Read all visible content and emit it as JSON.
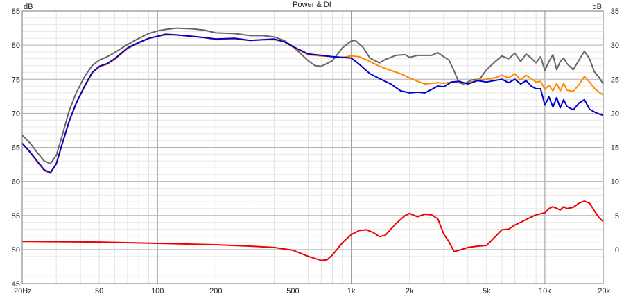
{
  "chart_data": {
    "type": "line",
    "title": "Power & DI",
    "ylabel_left": "dB",
    "ylabel_right": "dB",
    "xscale": "log",
    "xlim": [
      20,
      20000
    ],
    "ylim_left": [
      45,
      85
    ],
    "ylim_right": [
      -5,
      35
    ],
    "grid": true,
    "x_ticks": [
      {
        "v": 20,
        "label": "20Hz"
      },
      {
        "v": 50,
        "label": "50"
      },
      {
        "v": 100,
        "label": "100"
      },
      {
        "v": 200,
        "label": "200"
      },
      {
        "v": 500,
        "label": "500"
      },
      {
        "v": 1000,
        "label": "1k"
      },
      {
        "v": 2000,
        "label": "2k"
      },
      {
        "v": 5000,
        "label": "5k"
      },
      {
        "v": 10000,
        "label": "10k"
      },
      {
        "v": 20000,
        "label": "20k"
      }
    ],
    "y_ticks_left": [
      "45",
      "50",
      "55",
      "60",
      "65",
      "70",
      "75",
      "80",
      "85"
    ],
    "y_ticks_right": [
      "",
      "0",
      "5",
      "10",
      "15",
      "20",
      "25",
      "30",
      "35"
    ],
    "series": [
      {
        "color": "#666666",
        "axis": "left",
        "points": [
          [
            20,
            66.8
          ],
          [
            22,
            65.6
          ],
          [
            24,
            64.2
          ],
          [
            26,
            63
          ],
          [
            28,
            62.6
          ],
          [
            30,
            63.8
          ],
          [
            32,
            66.5
          ],
          [
            35,
            70.4
          ],
          [
            38,
            73
          ],
          [
            42,
            75.4
          ],
          [
            46,
            77
          ],
          [
            50,
            77.8
          ],
          [
            55,
            78.3
          ],
          [
            60,
            78.9
          ],
          [
            70,
            80.1
          ],
          [
            80,
            81
          ],
          [
            90,
            81.7
          ],
          [
            100,
            82.1
          ],
          [
            110,
            82.3
          ],
          [
            125,
            82.5
          ],
          [
            150,
            82.4
          ],
          [
            175,
            82.2
          ],
          [
            200,
            81.8
          ],
          [
            250,
            81.7
          ],
          [
            300,
            81.4
          ],
          [
            350,
            81.4
          ],
          [
            400,
            81.2
          ],
          [
            450,
            80.7
          ],
          [
            500,
            79.8
          ],
          [
            550,
            78.7
          ],
          [
            600,
            77.7
          ],
          [
            650,
            77
          ],
          [
            700,
            76.9
          ],
          [
            800,
            77.7
          ],
          [
            900,
            79.6
          ],
          [
            1000,
            80.6
          ],
          [
            1050,
            80.7
          ],
          [
            1150,
            79.7
          ],
          [
            1250,
            78.1
          ],
          [
            1400,
            77.4
          ],
          [
            1500,
            77.9
          ],
          [
            1700,
            78.5
          ],
          [
            1900,
            78.6
          ],
          [
            2000,
            78.2
          ],
          [
            2200,
            78.5
          ],
          [
            2400,
            78.5
          ],
          [
            2600,
            78.5
          ],
          [
            2800,
            78.9
          ],
          [
            3000,
            78.3
          ],
          [
            3200,
            77.8
          ],
          [
            3400,
            76.2
          ],
          [
            3600,
            74.5
          ],
          [
            3800,
            74.3
          ],
          [
            4200,
            74.9
          ],
          [
            4600,
            75
          ],
          [
            5000,
            76.4
          ],
          [
            5500,
            77.5
          ],
          [
            6000,
            78.4
          ],
          [
            6500,
            78
          ],
          [
            7000,
            78.8
          ],
          [
            7500,
            77.6
          ],
          [
            8000,
            78.7
          ],
          [
            8500,
            78.1
          ],
          [
            9000,
            77.4
          ],
          [
            9500,
            78.3
          ],
          [
            10000,
            76.3
          ],
          [
            10500,
            77.6
          ],
          [
            11000,
            78.6
          ],
          [
            11500,
            76.4
          ],
          [
            12000,
            77.6
          ],
          [
            12500,
            78.1
          ],
          [
            13000,
            77.3
          ],
          [
            14000,
            76.4
          ],
          [
            15000,
            77.8
          ],
          [
            16000,
            79.1
          ],
          [
            17000,
            78
          ],
          [
            18000,
            76.1
          ],
          [
            19000,
            75.3
          ],
          [
            20000,
            74.3
          ]
        ]
      },
      {
        "color": "#ff8800",
        "axis": "left",
        "points": [
          [
            20,
            65.6
          ],
          [
            22,
            64.2
          ],
          [
            24,
            62.8
          ],
          [
            26,
            61.6
          ],
          [
            28,
            61.2
          ],
          [
            30,
            62.5
          ],
          [
            32,
            65.2
          ],
          [
            35,
            68.8
          ],
          [
            38,
            71.4
          ],
          [
            42,
            73.9
          ],
          [
            46,
            75.9
          ],
          [
            50,
            76.8
          ],
          [
            55,
            77.2
          ],
          [
            60,
            77.9
          ],
          [
            70,
            79.5
          ],
          [
            80,
            80.3
          ],
          [
            90,
            81
          ],
          [
            100,
            81.3
          ],
          [
            110,
            81.5
          ],
          [
            125,
            81.5
          ],
          [
            150,
            81.3
          ],
          [
            175,
            81.1
          ],
          [
            200,
            80.8
          ],
          [
            250,
            80.9
          ],
          [
            300,
            80.7
          ],
          [
            350,
            80.8
          ],
          [
            400,
            80.8
          ],
          [
            450,
            80.5
          ],
          [
            500,
            79.7
          ],
          [
            600,
            78.6
          ],
          [
            700,
            78.4
          ],
          [
            800,
            78.3
          ],
          [
            900,
            78.2
          ],
          [
            1000,
            78.4
          ],
          [
            1100,
            78.3
          ],
          [
            1250,
            77.6
          ],
          [
            1400,
            76.9
          ],
          [
            1600,
            76.3
          ],
          [
            1800,
            75.8
          ],
          [
            2000,
            75.2
          ],
          [
            2200,
            74.7
          ],
          [
            2400,
            74.3
          ],
          [
            2600,
            74.4
          ],
          [
            2800,
            74.5
          ],
          [
            3000,
            74.4
          ],
          [
            3300,
            74.6
          ],
          [
            3600,
            74.6
          ],
          [
            4000,
            74.4
          ],
          [
            4500,
            74.9
          ],
          [
            5000,
            75
          ],
          [
            5500,
            75.2
          ],
          [
            6000,
            75.6
          ],
          [
            6500,
            75.2
          ],
          [
            7000,
            75.8
          ],
          [
            7500,
            74.9
          ],
          [
            8000,
            75.6
          ],
          [
            8500,
            75.1
          ],
          [
            9000,
            74.6
          ],
          [
            9500,
            74.7
          ],
          [
            10000,
            73.5
          ],
          [
            10500,
            74.1
          ],
          [
            11000,
            73.3
          ],
          [
            11500,
            74.4
          ],
          [
            12000,
            73.3
          ],
          [
            12500,
            74.4
          ],
          [
            13000,
            73.4
          ],
          [
            14000,
            73.2
          ],
          [
            15000,
            74.2
          ],
          [
            16000,
            75.4
          ],
          [
            17000,
            74.6
          ],
          [
            18000,
            73.7
          ],
          [
            19000,
            73.1
          ],
          [
            20000,
            72.7
          ]
        ]
      },
      {
        "color": "#0000cc",
        "axis": "left",
        "points": [
          [
            20,
            65.6
          ],
          [
            22,
            64.3
          ],
          [
            24,
            62.9
          ],
          [
            26,
            61.7
          ],
          [
            28,
            61.3
          ],
          [
            30,
            62.6
          ],
          [
            32,
            65.3
          ],
          [
            35,
            68.9
          ],
          [
            38,
            71.5
          ],
          [
            42,
            74
          ],
          [
            46,
            76
          ],
          [
            50,
            76.9
          ],
          [
            55,
            77.3
          ],
          [
            60,
            78
          ],
          [
            70,
            79.6
          ],
          [
            80,
            80.4
          ],
          [
            90,
            81
          ],
          [
            100,
            81.3
          ],
          [
            110,
            81.6
          ],
          [
            125,
            81.5
          ],
          [
            150,
            81.3
          ],
          [
            175,
            81.1
          ],
          [
            200,
            80.9
          ],
          [
            250,
            81
          ],
          [
            300,
            80.7
          ],
          [
            350,
            80.8
          ],
          [
            400,
            80.9
          ],
          [
            450,
            80.5
          ],
          [
            500,
            79.8
          ],
          [
            600,
            78.7
          ],
          [
            700,
            78.5
          ],
          [
            800,
            78.3
          ],
          [
            900,
            78.2
          ],
          [
            1000,
            78.1
          ],
          [
            1100,
            77.2
          ],
          [
            1250,
            75.8
          ],
          [
            1400,
            75.1
          ],
          [
            1600,
            74.3
          ],
          [
            1800,
            73.3
          ],
          [
            2000,
            73
          ],
          [
            2200,
            73.1
          ],
          [
            2400,
            73
          ],
          [
            2600,
            73.5
          ],
          [
            2800,
            74
          ],
          [
            3000,
            73.9
          ],
          [
            3300,
            74.6
          ],
          [
            3600,
            74.7
          ],
          [
            4000,
            74.3
          ],
          [
            4500,
            74.8
          ],
          [
            5000,
            74.6
          ],
          [
            5500,
            74.8
          ],
          [
            6000,
            75
          ],
          [
            6500,
            74.5
          ],
          [
            7000,
            75
          ],
          [
            7500,
            74.3
          ],
          [
            8000,
            74.8
          ],
          [
            8500,
            74
          ],
          [
            9000,
            73.6
          ],
          [
            9500,
            73.6
          ],
          [
            10000,
            71.2
          ],
          [
            10500,
            72.4
          ],
          [
            11000,
            70.9
          ],
          [
            11500,
            72.3
          ],
          [
            12000,
            70.8
          ],
          [
            12500,
            72
          ],
          [
            13000,
            71
          ],
          [
            14000,
            70.5
          ],
          [
            15000,
            71.5
          ],
          [
            16000,
            72
          ],
          [
            17000,
            70.6
          ],
          [
            18000,
            70.2
          ],
          [
            19000,
            69.9
          ],
          [
            20000,
            69.7
          ]
        ]
      },
      {
        "color": "#ee0000",
        "axis": "right",
        "points": [
          [
            20,
            1.2
          ],
          [
            50,
            1.1
          ],
          [
            100,
            0.9
          ],
          [
            200,
            0.7
          ],
          [
            300,
            0.5
          ],
          [
            400,
            0.3
          ],
          [
            500,
            -0.1
          ],
          [
            600,
            -1
          ],
          [
            700,
            -1.6
          ],
          [
            750,
            -1.5
          ],
          [
            800,
            -0.8
          ],
          [
            900,
            1
          ],
          [
            1000,
            2.2
          ],
          [
            1100,
            2.8
          ],
          [
            1200,
            2.9
          ],
          [
            1300,
            2.5
          ],
          [
            1400,
            1.9
          ],
          [
            1500,
            2.1
          ],
          [
            1700,
            3.8
          ],
          [
            1900,
            5
          ],
          [
            2000,
            5.3
          ],
          [
            2200,
            4.8
          ],
          [
            2400,
            5.2
          ],
          [
            2600,
            5.1
          ],
          [
            2800,
            4.5
          ],
          [
            3000,
            2.3
          ],
          [
            3200,
            1.1
          ],
          [
            3400,
            -0.3
          ],
          [
            3600,
            -0.1
          ],
          [
            4000,
            0.3
          ],
          [
            4500,
            0.5
          ],
          [
            5000,
            0.6
          ],
          [
            5500,
            1.8
          ],
          [
            6000,
            2.9
          ],
          [
            6500,
            3
          ],
          [
            7000,
            3.6
          ],
          [
            7500,
            4
          ],
          [
            8000,
            4.4
          ],
          [
            9000,
            5.1
          ],
          [
            10000,
            5.4
          ],
          [
            10500,
            6
          ],
          [
            11000,
            6.3
          ],
          [
            12000,
            5.8
          ],
          [
            12500,
            6.3
          ],
          [
            13000,
            6
          ],
          [
            14000,
            6.2
          ],
          [
            15000,
            6.8
          ],
          [
            16000,
            7.1
          ],
          [
            17000,
            6.8
          ],
          [
            18000,
            5.7
          ],
          [
            19000,
            4.7
          ],
          [
            20000,
            4.1
          ]
        ]
      }
    ]
  }
}
